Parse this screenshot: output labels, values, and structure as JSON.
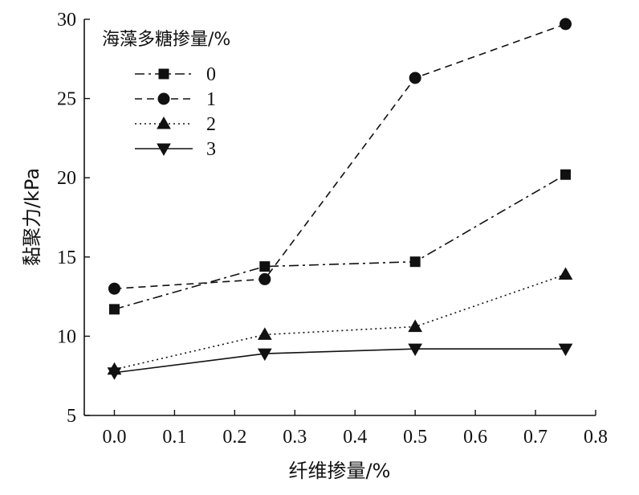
{
  "chart_data": {
    "type": "line",
    "title": "",
    "xlabel": "纤维掺量/%",
    "ylabel": "黏聚力/kPa",
    "xlim": [
      -0.05,
      0.8
    ],
    "ylim": [
      5,
      30
    ],
    "xticks": [
      "0.0",
      "0.1",
      "0.2",
      "0.3",
      "0.4",
      "0.5",
      "0.6",
      "0.7",
      "0.8"
    ],
    "yticks": [
      "5",
      "10",
      "15",
      "20",
      "25",
      "30"
    ],
    "legend": {
      "title": "海藻多糖掺量/%",
      "placement": "top-left"
    },
    "grid": false,
    "x": [
      0.0,
      0.25,
      0.5,
      0.75
    ],
    "series": [
      {
        "name": "0",
        "values": [
          11.7,
          14.4,
          14.7,
          20.2
        ],
        "marker": "square",
        "dash": "dashdot"
      },
      {
        "name": "1",
        "values": [
          13.0,
          13.6,
          26.3,
          29.7
        ],
        "marker": "circle",
        "dash": "dashed"
      },
      {
        "name": "2",
        "values": [
          7.9,
          10.1,
          10.6,
          13.9
        ],
        "marker": "triangle-up",
        "dash": "dotted"
      },
      {
        "name": "3",
        "values": [
          7.7,
          8.9,
          9.2,
          9.2
        ],
        "marker": "triangle-down",
        "dash": "solid"
      }
    ]
  }
}
